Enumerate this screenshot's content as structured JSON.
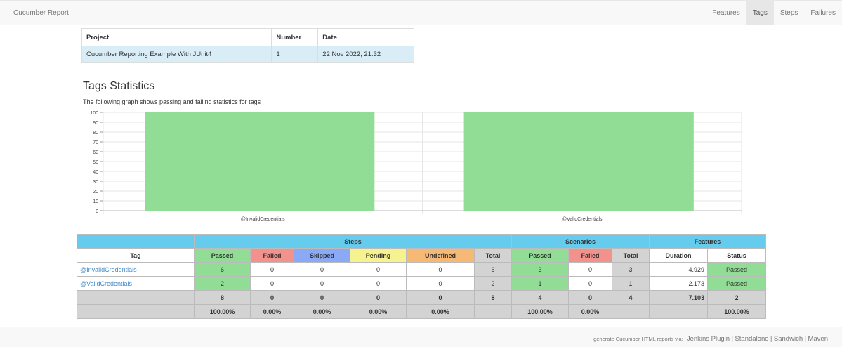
{
  "navbar": {
    "brand": "Cucumber Report",
    "items": [
      {
        "label": "Features",
        "active": false
      },
      {
        "label": "Tags",
        "active": true
      },
      {
        "label": "Steps",
        "active": false
      },
      {
        "label": "Failures",
        "active": false
      }
    ]
  },
  "project": {
    "headers": [
      "Project",
      "Number",
      "Date"
    ],
    "row": [
      "Cucumber Reporting Example With JUnit4",
      "1",
      "22 Nov 2022, 21:32"
    ]
  },
  "section": {
    "title": "Tags Statistics",
    "subtitle": "The following graph shows passing and failing statistics for tags"
  },
  "chart_data": {
    "type": "bar",
    "stacked": true,
    "categories": [
      "@InvalidCredentials",
      "@ValidCredentials"
    ],
    "series": [
      {
        "name": "Passed",
        "color": "#92dd96",
        "values": [
          100,
          100
        ]
      }
    ],
    "ylim": [
      0,
      100
    ],
    "yticks": [
      0,
      10,
      20,
      30,
      40,
      50,
      60,
      70,
      80,
      90,
      100
    ],
    "grid": true,
    "xlabel": "",
    "ylabel": "",
    "title": ""
  },
  "stats": {
    "groups": {
      "steps": "Steps",
      "scenarios": "Scenarios",
      "features": "Features"
    },
    "headers": {
      "tag": "Tag",
      "passed": "Passed",
      "failed": "Failed",
      "skipped": "Skipped",
      "pending": "Pending",
      "undefined": "Undefined",
      "total": "Total",
      "sc_passed": "Passed",
      "sc_failed": "Failed",
      "sc_total": "Total",
      "duration": "Duration",
      "status": "Status"
    },
    "rows": [
      {
        "tag": "@InvalidCredentials",
        "passed": "6",
        "failed": "0",
        "skipped": "0",
        "pending": "0",
        "undefined": "0",
        "total": "6",
        "sc_passed": "3",
        "sc_failed": "0",
        "sc_total": "3",
        "duration": "4.929",
        "status": "Passed"
      },
      {
        "tag": "@ValidCredentials",
        "passed": "2",
        "failed": "0",
        "skipped": "0",
        "pending": "0",
        "undefined": "0",
        "total": "2",
        "sc_passed": "1",
        "sc_failed": "0",
        "sc_total": "1",
        "duration": "2.173",
        "status": "Passed"
      }
    ],
    "totals": {
      "passed": "8",
      "failed": "0",
      "skipped": "0",
      "pending": "0",
      "undefined": "0",
      "total": "8",
      "sc_passed": "4",
      "sc_failed": "0",
      "sc_total": "4",
      "duration": "7.103",
      "status": "2"
    },
    "percent": {
      "passed": "100.00%",
      "failed": "0.00%",
      "skipped": "0.00%",
      "pending": "0.00%",
      "undefined": "0.00%",
      "sc_passed": "100.00%",
      "sc_failed": "0.00%",
      "status": "100.00%"
    }
  },
  "footer": {
    "prefix": "generate Cucumber HTML reports via:",
    "links": [
      "Jenkins Plugin",
      "Standalone",
      "Sandwich",
      "Maven"
    ],
    "separator": "|"
  }
}
